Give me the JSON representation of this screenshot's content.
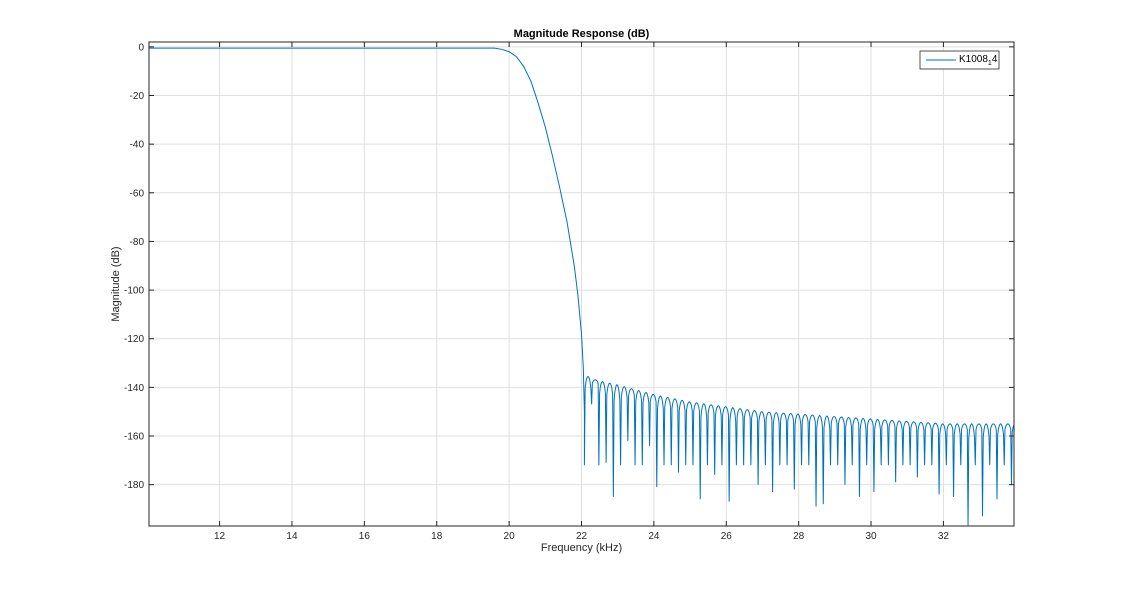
{
  "chart_data": {
    "type": "line",
    "title": "Magnitude Response (dB)",
    "xlabel": "Frequency (kHz)",
    "ylabel": "Magnitude (dB)",
    "xlim": [
      10.05,
      33.95
    ],
    "ylim": [
      -197,
      2
    ],
    "xticks": [
      12,
      14,
      16,
      18,
      20,
      22,
      24,
      26,
      28,
      30,
      32
    ],
    "yticks": [
      0,
      -20,
      -40,
      -60,
      -80,
      -100,
      -120,
      -140,
      -160,
      -180
    ],
    "grid": true,
    "legend_position": "top-right",
    "series": [
      {
        "name": "K1008",
        "name_subscript": "1",
        "name_suffix": "4",
        "color": "#0072bd",
        "passband": {
          "x_start": 10.05,
          "x_end": 19.6,
          "level_db": -0.5
        },
        "transition": [
          [
            19.6,
            -0.5
          ],
          [
            19.8,
            -1
          ],
          [
            20.0,
            -2
          ],
          [
            20.2,
            -4
          ],
          [
            20.4,
            -8
          ],
          [
            20.6,
            -14
          ],
          [
            20.8,
            -23
          ],
          [
            21.0,
            -33
          ],
          [
            21.2,
            -45
          ],
          [
            21.4,
            -58
          ],
          [
            21.6,
            -72
          ],
          [
            21.8,
            -90
          ],
          [
            21.9,
            -102
          ],
          [
            22.0,
            -118
          ],
          [
            22.05,
            -132
          ],
          [
            22.08,
            -150
          ]
        ],
        "stopband_peaks": [
          [
            22.1,
            -135
          ],
          [
            22.4,
            -137
          ],
          [
            23.0,
            -139
          ],
          [
            24.0,
            -143
          ],
          [
            25.0,
            -146
          ],
          [
            26.0,
            -148
          ],
          [
            27.0,
            -150
          ],
          [
            28.0,
            -151
          ],
          [
            29.0,
            -152
          ],
          [
            30.0,
            -153
          ],
          [
            31.0,
            -154
          ],
          [
            32.0,
            -155
          ],
          [
            33.0,
            -155
          ],
          [
            33.95,
            -155
          ]
        ],
        "stopband_lobe_width_khz": 0.2,
        "stopband_nulls_deep": [
          [
            22.2,
            -147
          ],
          [
            22.35,
            -164
          ],
          [
            22.6,
            -171
          ],
          [
            22.8,
            -185
          ],
          [
            23.3,
            -162
          ],
          [
            23.9,
            -164
          ],
          [
            24.15,
            -181
          ],
          [
            24.6,
            -175
          ],
          [
            25.2,
            -186
          ],
          [
            25.6,
            -176
          ],
          [
            26.1,
            -187
          ],
          [
            26.8,
            -180
          ],
          [
            27.3,
            -183
          ],
          [
            27.9,
            -182
          ],
          [
            28.45,
            -189
          ],
          [
            28.75,
            -188
          ],
          [
            29.2,
            -180
          ],
          [
            29.6,
            -185
          ],
          [
            30.1,
            -183
          ],
          [
            30.6,
            -179
          ],
          [
            31.2,
            -177
          ],
          [
            31.9,
            -184
          ],
          [
            32.3,
            -185
          ],
          [
            32.7,
            -197
          ],
          [
            33.15,
            -193
          ],
          [
            33.5,
            -186
          ],
          [
            33.85,
            -180
          ]
        ],
        "stopband_nulls_default": -172
      }
    ]
  }
}
